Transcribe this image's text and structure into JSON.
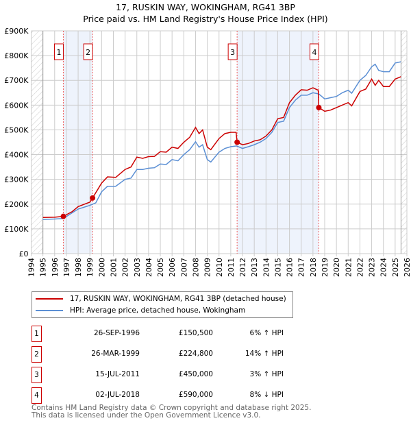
{
  "chart_data": {
    "type": "line",
    "title": "17, RUSKIN WAY, WOKINGHAM, RG41 3BP",
    "subtitle": "Price paid vs. HM Land Registry's House Price Index (HPI)",
    "xlim": [
      1994,
      2026
    ],
    "ylim": [
      0,
      900000
    ],
    "y_ticks": [
      {
        "v": 0,
        "label": "£0"
      },
      {
        "v": 100000,
        "label": "£100K"
      },
      {
        "v": 200000,
        "label": "£200K"
      },
      {
        "v": 300000,
        "label": "£300K"
      },
      {
        "v": 400000,
        "label": "£400K"
      },
      {
        "v": 500000,
        "label": "£500K"
      },
      {
        "v": 600000,
        "label": "£600K"
      },
      {
        "v": 700000,
        "label": "£700K"
      },
      {
        "v": 800000,
        "label": "£800K"
      },
      {
        "v": 900000,
        "label": "£900K"
      }
    ],
    "x_ticks": [
      "1994",
      "1995",
      "1996",
      "1997",
      "1998",
      "1999",
      "2000",
      "2001",
      "2002",
      "2003",
      "2004",
      "2005",
      "2006",
      "2007",
      "2008",
      "2009",
      "2010",
      "2011",
      "2012",
      "2013",
      "2014",
      "2015",
      "2016",
      "2017",
      "2018",
      "2019",
      "2020",
      "2021",
      "2022",
      "2023",
      "2024",
      "2025",
      "2026"
    ],
    "grid": true,
    "shaded_ranges": [
      [
        1996.74,
        1999.23
      ],
      [
        2011.54,
        2018.5
      ]
    ],
    "hatched_ranges": [
      [
        1994,
        1995
      ],
      [
        2025.5,
        2026
      ]
    ],
    "series": [
      {
        "name": "17, RUSKIN WAY, WOKINGHAM, RG41 3BP (detached house)",
        "color": "#cc0000",
        "x": [
          1995,
          1996,
          1996.74,
          1997.5,
          1998,
          1999,
          1999.23,
          2000,
          2000.5,
          2001.2,
          2002,
          2002.5,
          2003,
          2003.5,
          2004,
          2004.5,
          2005,
          2005.5,
          2006,
          2006.5,
          2007,
          2007.5,
          2008,
          2008.3,
          2008.6,
          2009,
          2009.3,
          2010,
          2010.5,
          2011,
          2011.45,
          2011.54,
          2012,
          2012.5,
          2013,
          2013.5,
          2014,
          2014.5,
          2015,
          2015.5,
          2016,
          2016.5,
          2017,
          2017.5,
          2018,
          2018.45,
          2018.5,
          2019,
          2019.5,
          2020,
          2020.5,
          2021,
          2021.3,
          2022,
          2022.5,
          2023,
          2023.3,
          2023.6,
          2024,
          2024.5,
          2025,
          2025.5
        ],
        "y": [
          146,
          147,
          150.5,
          170,
          190,
          208,
          224.8,
          285,
          310,
          308,
          340,
          350,
          390,
          385,
          392,
          393,
          412,
          410,
          430,
          425,
          450,
          470,
          510,
          485,
          500,
          430,
          420,
          465,
          485,
          490,
          490,
          450,
          440,
          445,
          455,
          460,
          475,
          500,
          545,
          550,
          610,
          640,
          662,
          660,
          670,
          660,
          590,
          575,
          580,
          590,
          600,
          610,
          597,
          655,
          665,
          705,
          680,
          700,
          675,
          675,
          705,
          715
        ]
      },
      {
        "name": "HPI: Average price, detached house, Wokingham",
        "color": "#5b8fd4",
        "x": [
          1995,
          1996,
          1996.74,
          1997.5,
          1998,
          1999,
          1999.5,
          2000,
          2000.5,
          2001.2,
          2002,
          2002.5,
          2003,
          2003.5,
          2004,
          2004.5,
          2005,
          2005.5,
          2006,
          2006.5,
          2007,
          2007.5,
          2008,
          2008.3,
          2008.6,
          2009,
          2009.3,
          2010,
          2010.5,
          2011,
          2011.5,
          2012,
          2012.5,
          2013,
          2013.5,
          2014,
          2014.5,
          2015,
          2015.5,
          2016,
          2016.5,
          2017,
          2017.5,
          2018,
          2018.5,
          2019,
          2019.5,
          2020,
          2020.5,
          2021,
          2021.3,
          2022,
          2022.5,
          2023,
          2023.3,
          2023.6,
          2024,
          2024.5,
          2025,
          2025.5
        ],
        "y": [
          138,
          140,
          142,
          165,
          180,
          195,
          205,
          250,
          272,
          272,
          300,
          305,
          340,
          340,
          345,
          347,
          362,
          360,
          380,
          375,
          400,
          420,
          452,
          430,
          440,
          380,
          370,
          410,
          425,
          432,
          435,
          425,
          432,
          440,
          450,
          465,
          490,
          530,
          535,
          590,
          620,
          640,
          640,
          650,
          645,
          625,
          630,
          635,
          650,
          660,
          648,
          700,
          720,
          755,
          765,
          740,
          735,
          735,
          770,
          775
        ]
      }
    ],
    "sales": [
      {
        "n": "1",
        "x": 1996.74,
        "y": 150.5,
        "date": "26-SEP-1996",
        "price": "£150,500",
        "hpi": "6% ↑ HPI"
      },
      {
        "n": "2",
        "x": 1999.23,
        "y": 224.8,
        "date": "26-MAR-1999",
        "price": "£224,800",
        "hpi": "14% ↑ HPI"
      },
      {
        "n": "3",
        "x": 2011.54,
        "y": 450,
        "date": "15-JUL-2011",
        "price": "£450,000",
        "hpi": "3% ↑ HPI"
      },
      {
        "n": "4",
        "x": 2018.5,
        "y": 590,
        "date": "02-JUL-2018",
        "price": "£590,000",
        "hpi": "8% ↓ HPI"
      }
    ]
  },
  "footer": {
    "line1": "Contains HM Land Registry data © Crown copyright and database right 2025.",
    "line2": "This data is licensed under the Open Government Licence v3.0."
  }
}
